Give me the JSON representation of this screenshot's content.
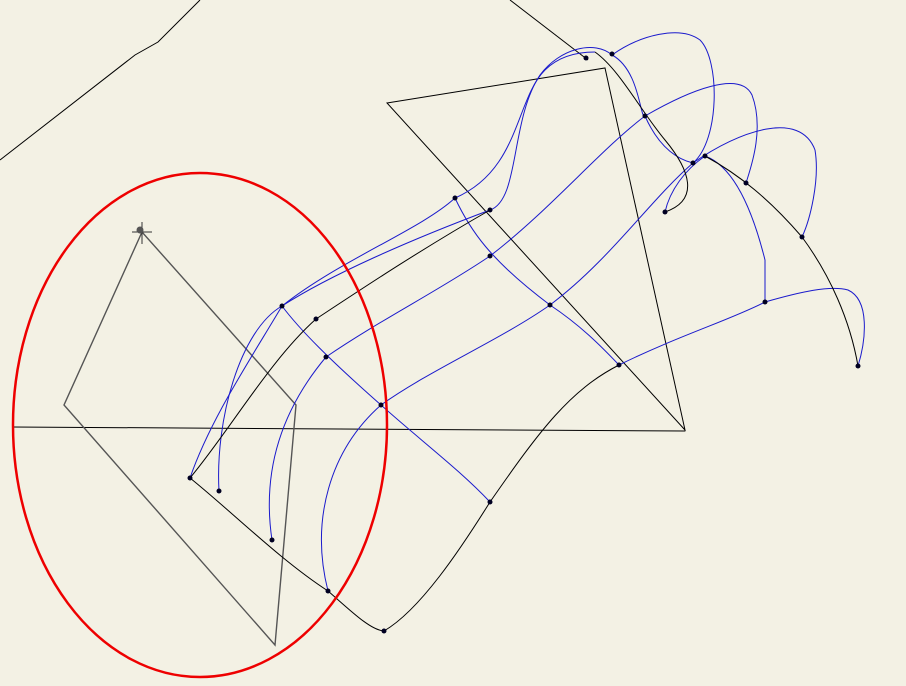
{
  "colors": {
    "background": "#f3f1e4",
    "sketch_line": "#000000",
    "profile_line": "#555555",
    "spline": "#1a1acc",
    "point": "#000022",
    "highlight": "#ee0000"
  },
  "icons": {
    "cursor": "crosshair-cursor-icon"
  }
}
